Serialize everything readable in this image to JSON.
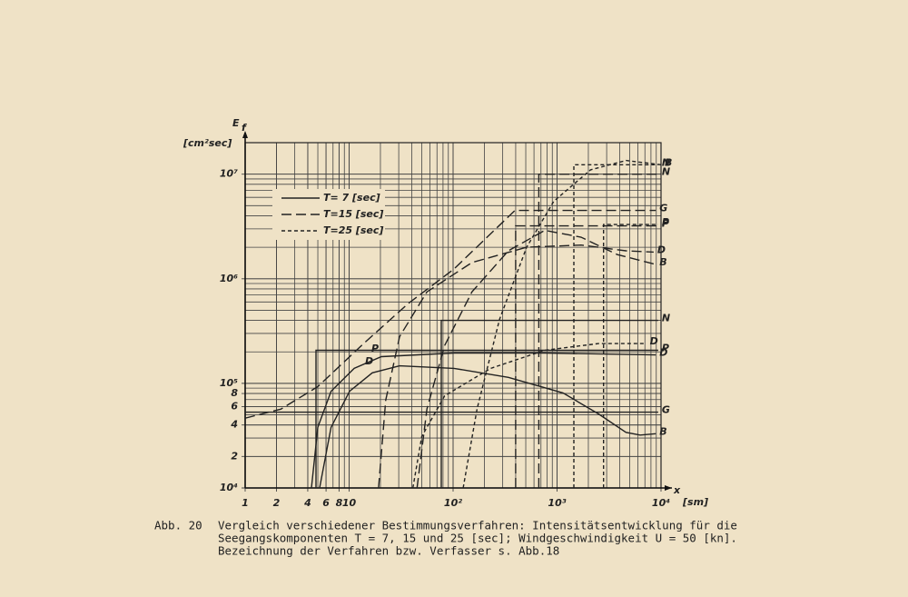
{
  "chart_data": {
    "type": "line",
    "log_x": true,
    "log_y": true,
    "grid": true,
    "ylabel": "E",
    "ylabel_subscript": "f",
    "yunit": "[cm²sec]",
    "xlabel": "x",
    "xunit": "[sm]",
    "xlim": [
      1,
      10000
    ],
    "ylim": [
      10000,
      20000000
    ],
    "xticks": [
      1,
      2,
      4,
      6,
      8,
      10,
      {
        "value": 100,
        "label": "10²"
      },
      {
        "value": 1000,
        "label": "10³"
      },
      {
        "value": 10000,
        "label": "10⁴"
      }
    ],
    "yticks": [
      {
        "value": 10000,
        "label": "10⁴"
      },
      {
        "value": 20000,
        "label": "2"
      },
      {
        "value": 40000,
        "label": "4"
      },
      {
        "value": 60000,
        "label": "6"
      },
      {
        "value": 80000,
        "label": "8"
      },
      {
        "value": 100000,
        "label": "10⁵"
      },
      {
        "value": 1000000,
        "label": "10⁶"
      },
      {
        "value": 10000000,
        "label": "10⁷"
      }
    ],
    "legend": [
      {
        "label": "T= 7 [sec]",
        "dash": "solid"
      },
      {
        "label": "T=15 [sec]",
        "dash": "dashed"
      },
      {
        "label": "T=25 [sec]",
        "dash": "dotted"
      }
    ],
    "color": "#222222",
    "series": [
      {
        "name": "G",
        "style": 0,
        "x": [
          1,
          9400
        ],
        "values": [
          53000,
          53000
        ]
      },
      {
        "name": "P",
        "style": 0,
        "x": [
          4.8,
          4.8,
          9400
        ],
        "values": [
          10000,
          207000,
          207000
        ]
      },
      {
        "name": "N",
        "style": 0,
        "x": [
          77,
          77,
          9400
        ],
        "values": [
          10000,
          400000,
          400000
        ]
      },
      {
        "name": "D",
        "style": 0,
        "x": [
          4.34,
          5.0,
          6.7,
          11.2,
          20.4,
          102,
          760,
          8900
        ],
        "values": [
          10000,
          38000,
          84000,
          139000,
          180000,
          195000,
          195000,
          187000
        ]
      },
      {
        "name": "B",
        "style": 0,
        "x": [
          5.2,
          6.7,
          10.1,
          16.7,
          30.6,
          102,
          340,
          1140,
          2500,
          4600,
          6300,
          8900
        ],
        "values": [
          10000,
          38000,
          84000,
          126000,
          147000,
          139000,
          114000,
          81000,
          51000,
          34000,
          32000,
          33000
        ]
      },
      {
        "name": "G",
        "style": 1,
        "x": [
          1,
          2.2,
          5,
          13.6,
          37,
          102,
          393,
          8900
        ],
        "values": [
          46500,
          56600,
          93000,
          237000,
          580000,
          1240000,
          4500000,
          4500000
        ]
      },
      {
        "name": "P",
        "style": 1,
        "x": [
          400,
          400,
          9400
        ],
        "values": [
          10000,
          3200000,
          3200000
        ]
      },
      {
        "name": "N",
        "style": 1,
        "x": [
          667,
          667,
          9400
        ],
        "values": [
          10000,
          10000000,
          10000000
        ]
      },
      {
        "name": "D",
        "style": 1,
        "x": [
          19.2,
          22.5,
          30.6,
          56,
          152,
          510,
          1700,
          4600,
          8500
        ],
        "values": [
          10000,
          69000,
          280000,
          750000,
          1430000,
          2000000,
          2100000,
          1850000,
          1800000
        ]
      },
      {
        "name": "B",
        "style": 1,
        "x": [
          45,
          56,
          83,
          152,
          340,
          760,
          1700,
          3800,
          8900
        ],
        "values": [
          10000,
          57000,
          230000,
          750000,
          1850000,
          2900000,
          2500000,
          1700000,
          1370000
        ]
      },
      {
        "name": "D",
        "style": 2,
        "x": [
          41,
          50,
          83,
          230,
          760,
          2500,
          7200
        ],
        "values": [
          10000,
          31000,
          76000,
          139000,
          207000,
          240000,
          240000
        ]
      },
      {
        "name": "N",
        "style": 2,
        "x": [
          1450,
          1450,
          9400
        ],
        "values": [
          10000,
          12300000,
          12300000
        ]
      },
      {
        "name": "P",
        "style": 2,
        "x": [
          2800,
          2800,
          9400
        ],
        "values": [
          10000,
          3300000,
          3300000
        ]
      },
      {
        "name": "B",
        "style": 2,
        "x": [
          125,
          170,
          280,
          510,
          930,
          2100,
          4600,
          10000
        ],
        "values": [
          10000,
          57000,
          410000,
          2000000,
          5500000,
          11000000,
          13500000,
          12300000
        ]
      }
    ]
  },
  "caption": {
    "number": "Abb. 20",
    "lines": [
      "Vergleich verschiedener Bestimmungsverfahren: Intensitätsentwicklung für die",
      "Seegangskomponenten T = 7, 15 und 25 [sec]; Windgeschwindigkeit U = 50 [kn].",
      "Bezeichnung der Verfahren bzw. Verfasser s. Abb.18"
    ]
  }
}
